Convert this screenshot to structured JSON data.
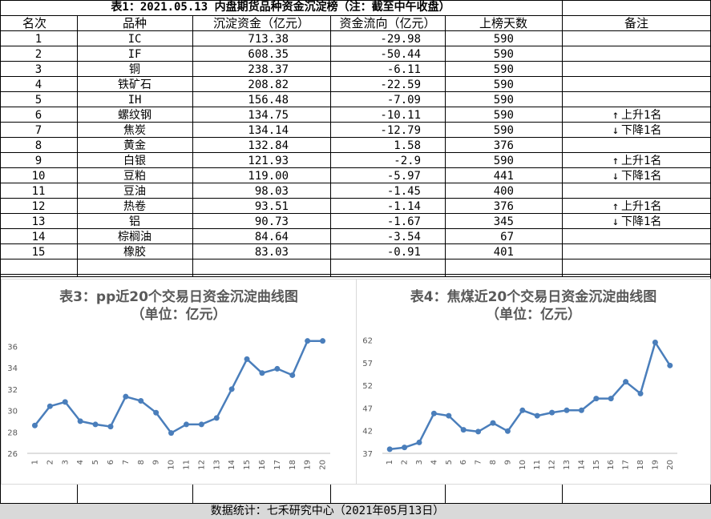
{
  "sheet": {
    "title": "表1：2021.05.13 内盘期货品种资金沉淀榜（注：截至中午收盘）",
    "headers": {
      "rank": "名次",
      "name": "品种",
      "fund": "沉淀资金（亿元）",
      "flow": "资金流向（亿元）",
      "days": "上榜天数",
      "note": "备注"
    },
    "rows": [
      {
        "rank": "1",
        "name": "IC",
        "fund": "713.38",
        "flow": "-29.98",
        "days": "590",
        "note": ""
      },
      {
        "rank": "2",
        "name": "IF",
        "fund": "608.35",
        "flow": "-50.44",
        "days": "590",
        "note": ""
      },
      {
        "rank": "3",
        "name": "铜",
        "fund": "238.37",
        "flow": "-6.11",
        "days": "590",
        "note": ""
      },
      {
        "rank": "4",
        "name": "铁矿石",
        "fund": "208.82",
        "flow": "-22.59",
        "days": "590",
        "note": ""
      },
      {
        "rank": "5",
        "name": "IH",
        "fund": "156.48",
        "flow": "-7.09",
        "days": "590",
        "note": ""
      },
      {
        "rank": "6",
        "name": "螺纹钢",
        "fund": "134.75",
        "flow": "-10.11",
        "days": "590",
        "note": "上升1名",
        "dir": "up"
      },
      {
        "rank": "7",
        "name": "焦炭",
        "fund": "134.14",
        "flow": "-12.79",
        "days": "590",
        "note": "下降1名",
        "dir": "down"
      },
      {
        "rank": "8",
        "name": "黄金",
        "fund": "132.84",
        "flow": "1.58",
        "days": "376",
        "note": ""
      },
      {
        "rank": "9",
        "name": "白银",
        "fund": "121.93",
        "flow": "-2.9",
        "days": "590",
        "note": "上升1名",
        "dir": "up"
      },
      {
        "rank": "10",
        "name": "豆粕",
        "fund": "119.00",
        "flow": "-5.97",
        "days": "441",
        "note": "下降1名",
        "dir": "down"
      },
      {
        "rank": "11",
        "name": "豆油",
        "fund": "98.03",
        "flow": "-1.45",
        "days": "400",
        "note": ""
      },
      {
        "rank": "12",
        "name": "热卷",
        "fund": "93.51",
        "flow": "-1.14",
        "days": "376",
        "note": "上升1名",
        "dir": "up"
      },
      {
        "rank": "13",
        "name": "铝",
        "fund": "90.73",
        "flow": "-1.67",
        "days": "345",
        "note": "下降1名",
        "dir": "down"
      },
      {
        "rank": "14",
        "name": "棕榈油",
        "fund": "84.64",
        "flow": "-3.54",
        "days": "67",
        "note": ""
      },
      {
        "rank": "15",
        "name": "橡胶",
        "fund": "83.03",
        "flow": "-0.91",
        "days": "401",
        "note": ""
      }
    ],
    "arrows": {
      "up": "↑",
      "down": "↓"
    },
    "footer": "数据统计：七禾研究中心（2021年05月13日）"
  },
  "chart_data": [
    {
      "type": "line",
      "title": "表3：pp近20个交易日资金沉淀曲线图",
      "subtitle": "（单位：亿元）",
      "x": [
        "1",
        "2",
        "3",
        "4",
        "5",
        "6",
        "7",
        "8",
        "9",
        "10",
        "11",
        "12",
        "13",
        "14",
        "15",
        "16",
        "17",
        "18",
        "19",
        "20"
      ],
      "series": [
        {
          "values": [
            28.6,
            30.4,
            30.8,
            29.0,
            28.7,
            28.5,
            31.3,
            30.9,
            29.8,
            27.9,
            28.7,
            28.7,
            29.3,
            32.0,
            34.8,
            33.5,
            33.9,
            33.3,
            36.5,
            36.5
          ]
        }
      ],
      "ylim": [
        26,
        37
      ],
      "yticks": [
        26,
        28,
        30,
        32,
        34,
        36
      ],
      "line_color": "#4a7ebb",
      "grid": false
    },
    {
      "type": "line",
      "title": "表4：焦煤近20个交易日资金沉淀曲线图",
      "subtitle": "（单位：亿元）",
      "x": [
        "1",
        "2",
        "3",
        "4",
        "5",
        "6",
        "7",
        "8",
        "9",
        "10",
        "11",
        "12",
        "13",
        "14",
        "15",
        "16",
        "17",
        "18",
        "19",
        "20"
      ],
      "series": [
        {
          "values": [
            37.9,
            38.3,
            39.4,
            45.8,
            45.3,
            42.2,
            41.8,
            43.7,
            41.9,
            46.5,
            45.3,
            46.0,
            46.5,
            46.5,
            49.1,
            49.1,
            52.8,
            50.2,
            61.5,
            56.4
          ]
        }
      ],
      "ylim": [
        37,
        63
      ],
      "yticks": [
        37,
        42,
        47,
        52,
        57,
        62
      ],
      "line_color": "#4a7ebb",
      "grid": false
    }
  ]
}
